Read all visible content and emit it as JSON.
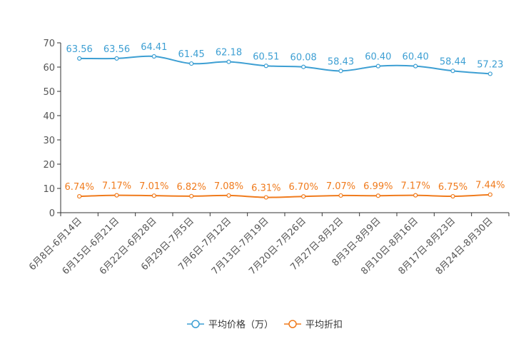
{
  "chart_data": {
    "type": "line",
    "categories": [
      "6月8日-6月14日",
      "6月15日-6月21日",
      "6月22日-6月28日",
      "6月29日-7月5日",
      "7月6日-7月12日",
      "7月13日-7月19日",
      "7月20日-7月26日",
      "7月27日-8月2日",
      "8月3日-8月9日",
      "8月10日-8月16日",
      "8月17日-8月23日",
      "8月24日-8月30日"
    ],
    "series": [
      {
        "name": "平均价格（万）",
        "color": "#3d9fd3",
        "values": [
          63.56,
          63.56,
          64.41,
          61.45,
          62.18,
          60.51,
          60.08,
          58.43,
          60.4,
          60.4,
          58.44,
          57.23
        ],
        "labels": [
          "63.56",
          "63.56",
          "64.41",
          "61.45",
          "62.18",
          "60.51",
          "60.08",
          "58.43",
          "60.40",
          "60.40",
          "58.44",
          "57.23"
        ]
      },
      {
        "name": "平均折扣",
        "color": "#f07b1d",
        "values": [
          6.74,
          7.17,
          7.01,
          6.82,
          7.08,
          6.31,
          6.7,
          7.07,
          6.99,
          7.17,
          6.75,
          7.44
        ],
        "labels": [
          "6.74%",
          "7.17%",
          "7.01%",
          "6.82%",
          "7.08%",
          "6.31%",
          "6.70%",
          "7.07%",
          "6.99%",
          "7.17%",
          "6.75%",
          "7.44%"
        ]
      }
    ],
    "ylim": [
      0,
      70
    ],
    "yticks": [
      "0",
      "10",
      "20",
      "30",
      "40",
      "50",
      "60",
      "70"
    ],
    "legend": "bottom-center"
  }
}
